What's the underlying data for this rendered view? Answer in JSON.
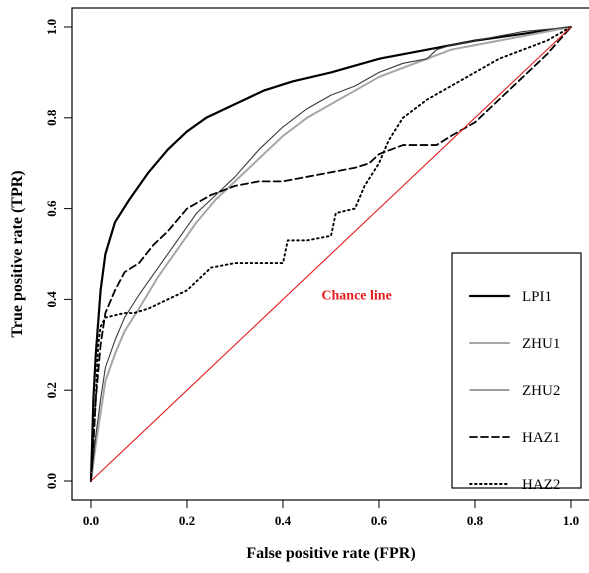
{
  "chart_data": {
    "type": "line",
    "title": "",
    "xlabel": "False positive rate (FPR)",
    "ylabel": "True positive rate (TPR)",
    "xlim": [
      0,
      1
    ],
    "ylim": [
      0,
      1
    ],
    "xticks": [
      0.0,
      0.2,
      0.4,
      0.6,
      0.8,
      1.0
    ],
    "yticks": [
      0.0,
      0.2,
      0.4,
      0.6,
      0.8,
      1.0
    ],
    "xtick_labels": [
      "0.0",
      "0.2",
      "0.4",
      "0.6",
      "0.8",
      "1.0"
    ],
    "ytick_labels": [
      "0.0",
      "0.2",
      "0.4",
      "0.6",
      "0.8",
      "1.0"
    ],
    "grid": false,
    "legend_position": "bottom-right",
    "annotation": {
      "text": "Chance line",
      "x": 0.48,
      "y": 0.4,
      "color": "#e31a1c"
    },
    "reference_line": {
      "x": [
        0,
        1
      ],
      "y": [
        0,
        1
      ],
      "color": "#e31a1c"
    },
    "series": [
      {
        "name": "LPI1",
        "color": "#000000",
        "line_style": "solid-thick",
        "x": [
          0.0,
          0.005,
          0.01,
          0.02,
          0.03,
          0.05,
          0.08,
          0.12,
          0.16,
          0.2,
          0.24,
          0.3,
          0.36,
          0.42,
          0.5,
          0.6,
          0.7,
          0.8,
          0.9,
          1.0
        ],
        "y": [
          0.0,
          0.18,
          0.28,
          0.42,
          0.5,
          0.57,
          0.62,
          0.68,
          0.73,
          0.77,
          0.8,
          0.83,
          0.86,
          0.88,
          0.9,
          0.93,
          0.95,
          0.97,
          0.985,
          1.0
        ]
      },
      {
        "name": "ZHU1",
        "color": "#a6a6a6",
        "line_style": "solid-gray",
        "x": [
          0.0,
          0.01,
          0.02,
          0.03,
          0.05,
          0.07,
          0.1,
          0.14,
          0.18,
          0.22,
          0.26,
          0.3,
          0.35,
          0.4,
          0.45,
          0.5,
          0.55,
          0.6,
          0.65,
          0.7,
          0.75,
          0.8,
          0.9,
          1.0
        ],
        "y": [
          0.0,
          0.08,
          0.15,
          0.22,
          0.28,
          0.33,
          0.38,
          0.45,
          0.51,
          0.57,
          0.62,
          0.66,
          0.71,
          0.76,
          0.8,
          0.83,
          0.86,
          0.89,
          0.91,
          0.93,
          0.95,
          0.96,
          0.98,
          1.0
        ]
      },
      {
        "name": "ZHU2",
        "color": "#3a3a3a",
        "line_style": "solid-thin",
        "x": [
          0.0,
          0.01,
          0.02,
          0.03,
          0.05,
          0.07,
          0.1,
          0.14,
          0.18,
          0.22,
          0.26,
          0.3,
          0.35,
          0.4,
          0.45,
          0.5,
          0.55,
          0.6,
          0.65,
          0.7,
          0.72,
          0.75,
          0.8,
          0.9,
          1.0
        ],
        "y": [
          0.0,
          0.1,
          0.18,
          0.25,
          0.31,
          0.36,
          0.41,
          0.47,
          0.53,
          0.59,
          0.63,
          0.67,
          0.73,
          0.78,
          0.82,
          0.85,
          0.87,
          0.9,
          0.92,
          0.93,
          0.95,
          0.96,
          0.97,
          0.99,
          1.0
        ]
      },
      {
        "name": "HAZ1",
        "color": "#000000",
        "line_style": "dashed",
        "x": [
          0.0,
          0.005,
          0.01,
          0.02,
          0.03,
          0.05,
          0.07,
          0.1,
          0.13,
          0.16,
          0.2,
          0.25,
          0.3,
          0.35,
          0.4,
          0.45,
          0.5,
          0.55,
          0.58,
          0.6,
          0.65,
          0.7,
          0.72,
          0.75,
          0.8,
          0.85,
          0.9,
          0.95,
          1.0
        ],
        "y": [
          0.0,
          0.08,
          0.18,
          0.3,
          0.37,
          0.42,
          0.46,
          0.48,
          0.52,
          0.55,
          0.6,
          0.63,
          0.65,
          0.66,
          0.66,
          0.67,
          0.68,
          0.69,
          0.7,
          0.72,
          0.74,
          0.74,
          0.74,
          0.76,
          0.79,
          0.84,
          0.89,
          0.94,
          1.0
        ]
      },
      {
        "name": "HAZ2",
        "color": "#000000",
        "line_style": "dotted",
        "x": [
          0.0,
          0.01,
          0.015,
          0.02,
          0.03,
          0.07,
          0.09,
          0.12,
          0.16,
          0.2,
          0.23,
          0.25,
          0.3,
          0.35,
          0.4,
          0.41,
          0.45,
          0.5,
          0.51,
          0.55,
          0.57,
          0.6,
          0.62,
          0.65,
          0.7,
          0.75,
          0.8,
          0.85,
          0.9,
          0.95,
          1.0
        ],
        "y": [
          0.0,
          0.18,
          0.3,
          0.34,
          0.36,
          0.37,
          0.37,
          0.38,
          0.4,
          0.42,
          0.45,
          0.47,
          0.48,
          0.48,
          0.48,
          0.53,
          0.53,
          0.54,
          0.59,
          0.6,
          0.65,
          0.7,
          0.75,
          0.8,
          0.84,
          0.87,
          0.9,
          0.93,
          0.95,
          0.97,
          1.0
        ]
      }
    ]
  }
}
